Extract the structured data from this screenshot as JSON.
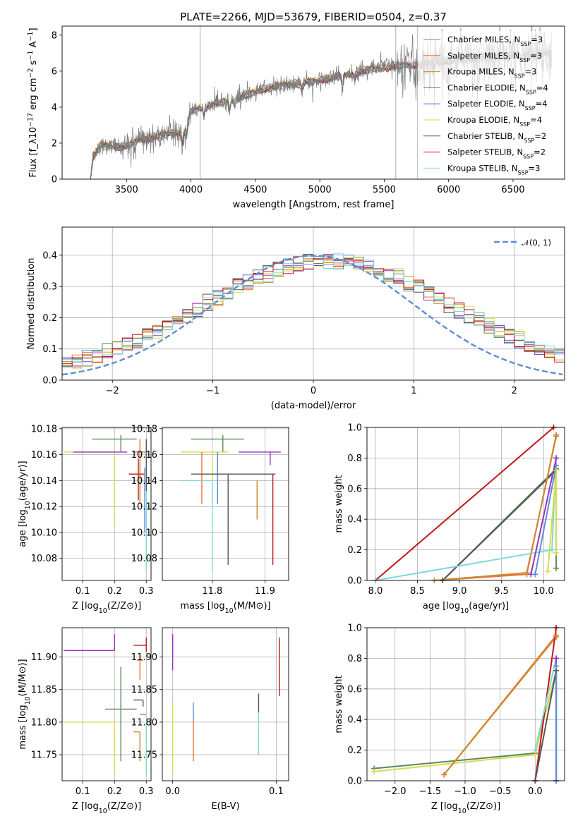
{
  "figure": {
    "title": "PLATE=2266, MJD=53679, FIBERID=0504, z=0.37"
  },
  "models": [
    {
      "name": "Chabrier MILES",
      "nssp": "3",
      "color": "#5b8dd9"
    },
    {
      "name": "Salpeter MILES",
      "nssp": "3",
      "color": "#e8743b"
    },
    {
      "name": "Kroupa MILES",
      "nssp": "3",
      "color": "#c98a2e"
    },
    {
      "name": "Chabrier ELODIE",
      "nssp": "4",
      "color": "#5a8a5a"
    },
    {
      "name": "Salpeter ELODIE",
      "nssp": "4",
      "color": "#9b30c0"
    },
    {
      "name": "Kroupa ELODIE",
      "nssp": "4",
      "color": "#d9dc4a"
    },
    {
      "name": "Chabrier STELIB",
      "nssp": "2",
      "color": "#555555"
    },
    {
      "name": "Salpeter STELIB",
      "nssp": "2",
      "color": "#c01818"
    },
    {
      "name": "Kroupa STELIB",
      "nssp": "3",
      "color": "#7fd8d8"
    }
  ],
  "chart_data": [
    {
      "id": "spectrum",
      "type": "line",
      "xlabel": "wavelength [Angstrom, rest frame]",
      "ylabel": "Flux [f_λ10^-17 erg cm^-2 s^-1 A^-1]",
      "xlim": [
        3000,
        6900
      ],
      "ylim": [
        0,
        8.5
      ],
      "xticks": [
        3500,
        4000,
        4500,
        5000,
        5500,
        6000,
        6500
      ],
      "yticks": [
        0,
        2,
        4,
        6,
        8
      ],
      "grid": false,
      "legend": "right",
      "continuum_anchors": [
        [
          3220,
          0
        ],
        [
          3240,
          1.2
        ],
        [
          3300,
          1.9
        ],
        [
          3500,
          1.8
        ],
        [
          3600,
          2.2
        ],
        [
          3700,
          2.3
        ],
        [
          3850,
          2.6
        ],
        [
          3950,
          2.6
        ],
        [
          4000,
          3.8
        ],
        [
          4200,
          4.2
        ],
        [
          4400,
          4.6
        ],
        [
          4600,
          5.1
        ],
        [
          4800,
          5.3
        ],
        [
          5000,
          5.5
        ],
        [
          5200,
          5.8
        ],
        [
          5400,
          6.1
        ],
        [
          5600,
          6.3
        ],
        [
          5800,
          6.4
        ],
        [
          6000,
          6.6
        ],
        [
          6300,
          6.8
        ],
        [
          6600,
          6.9
        ],
        [
          6800,
          7.0
        ]
      ],
      "notes": "Observed spectrum (gray) and nine model fits overlaid"
    },
    {
      "id": "residuals",
      "type": "line",
      "xlabel": "(data-model)/error",
      "ylabel": "Normed distribution",
      "xlim": [
        -2.5,
        2.5
      ],
      "ylim": [
        0,
        0.49
      ],
      "xticks": [
        -2,
        -1,
        0,
        1,
        2
      ],
      "yticks": [
        0.0,
        0.1,
        0.2,
        0.3,
        0.4
      ],
      "grid": true,
      "legend": "top-right",
      "legend_label": "𝒩(0, 1)",
      "gaussian": {
        "mean": 0,
        "sigma": 1,
        "color": "#5b8dd9"
      },
      "hist_bin_width": 0.1
    },
    {
      "id": "age-vs-Z",
      "type": "scatter",
      "xlabel": "Z [log10(Z/Z⊙)]",
      "ylabel": "age [log10(age/yr)]",
      "xlim": [
        0.035,
        0.315
      ],
      "ylim": [
        10.063,
        10.181
      ],
      "xticks": [
        0.1,
        0.2,
        0.3
      ],
      "yticks": [
        10.08,
        10.1,
        10.12,
        10.14,
        10.16,
        10.18
      ],
      "grid": true,
      "points": [
        {
          "model": 3,
          "x": 0.22,
          "y": 10.172,
          "xerr": [
            0.09,
            0.05
          ],
          "yerr": [
            0.01,
            0.003
          ]
        },
        {
          "model": 5,
          "x": 0.2,
          "y": 10.162,
          "xerr": [
            0.16,
            0.0
          ],
          "yerr": [
            0.057,
            0.0
          ]
        },
        {
          "model": 4,
          "x": 0.24,
          "y": 10.162,
          "xerr": [
            0.17,
            0.0
          ],
          "yerr": [
            0.0,
            0.0
          ]
        },
        {
          "model": 1,
          "x": 0.28,
          "y": 10.162,
          "xerr": [
            0.02,
            0.02
          ],
          "yerr": [
            0.04,
            0.01
          ]
        },
        {
          "model": 7,
          "x": 0.275,
          "y": 10.145,
          "xerr": [
            0.03,
            0.02
          ],
          "yerr": [
            0.02,
            0.012
          ]
        },
        {
          "model": 8,
          "x": 0.3,
          "y": 10.14,
          "xerr": [
            0.03,
            0.0
          ],
          "yerr": [
            0.07,
            0.0
          ]
        },
        {
          "model": 6,
          "x": 0.3,
          "y": 10.172,
          "xerr": [
            0.0,
            0.0
          ],
          "yerr": [
            0.04,
            0.0
          ]
        },
        {
          "model": 0,
          "x": 0.295,
          "y": 10.15,
          "xerr": [
            0.0,
            0.0
          ],
          "yerr": [
            0.05,
            0.0
          ]
        }
      ]
    },
    {
      "id": "age-vs-mass",
      "type": "scatter",
      "xlabel": "mass [log10(M/M⊙)]",
      "ylabel": "",
      "xlim": [
        11.705,
        11.945
      ],
      "ylim": [
        10.063,
        10.181
      ],
      "xticks": [
        11.8,
        11.9
      ],
      "yticks": [
        10.08,
        10.1,
        10.12,
        10.14,
        10.16,
        10.18
      ],
      "grid": true,
      "points": [
        {
          "model": 3,
          "x": 11.82,
          "y": 10.172,
          "xerr": [
            0.06,
            0.04
          ],
          "yerr": [
            0.01,
            0.003
          ]
        },
        {
          "model": 5,
          "x": 11.8,
          "y": 10.162,
          "xerr": [
            0.06,
            0.03
          ],
          "yerr": [
            0.04,
            0.0
          ]
        },
        {
          "model": 4,
          "x": 11.91,
          "y": 10.162,
          "xerr": [
            0.06,
            0.02
          ],
          "yerr": [
            0.01,
            0.0
          ]
        },
        {
          "model": 1,
          "x": 11.78,
          "y": 10.162,
          "xerr": [
            0.0,
            0.0
          ],
          "yerr": [
            0.04,
            0.0
          ]
        },
        {
          "model": 0,
          "x": 11.81,
          "y": 10.162,
          "xerr": [
            0.0,
            0.0
          ],
          "yerr": [
            0.04,
            0.0
          ]
        },
        {
          "model": 6,
          "x": 11.83,
          "y": 10.145,
          "xerr": [
            0.07,
            0.09
          ],
          "yerr": [
            0.07,
            0.0
          ]
        },
        {
          "model": 8,
          "x": 11.8,
          "y": 10.14,
          "xerr": [
            0.06,
            0.0
          ],
          "yerr": [
            0.07,
            0.0
          ]
        },
        {
          "model": 2,
          "x": 11.885,
          "y": 10.14,
          "xerr": [
            0.0,
            0.0
          ],
          "yerr": [
            0.03,
            0.0
          ]
        },
        {
          "model": 7,
          "x": 11.915,
          "y": 10.145,
          "xerr": [
            0.0,
            0.0
          ],
          "yerr": [
            0.07,
            0.0
          ]
        }
      ]
    },
    {
      "id": "weight-vs-age",
      "type": "line",
      "xlabel": "age [log10(age/yr)]",
      "ylabel": "mass weight",
      "xlim": [
        7.9,
        10.25
      ],
      "ylim": [
        0,
        1
      ],
      "xticks": [
        8.0,
        8.5,
        9.0,
        9.5,
        10.0
      ],
      "yticks": [
        0.0,
        0.2,
        0.4,
        0.6,
        0.8,
        1.0
      ],
      "grid": true,
      "series": [
        {
          "model": 7,
          "x": [
            8.0,
            10.12
          ],
          "y": [
            0.0,
            1.0
          ]
        },
        {
          "model": 3,
          "x": [
            8.8,
            10.15,
            10.15
          ],
          "y": [
            0.0,
            0.73,
            0.08
          ]
        },
        {
          "model": 6,
          "x": [
            8.8,
            10.15
          ],
          "y": [
            0.0,
            0.72
          ]
        },
        {
          "model": 1,
          "x": [
            8.7,
            9.8,
            10.15
          ],
          "y": [
            0.0,
            0.04,
            0.95
          ]
        },
        {
          "model": 2,
          "x": [
            8.7,
            9.8,
            10.15
          ],
          "y": [
            0.0,
            0.05,
            0.94
          ]
        },
        {
          "model": 8,
          "x": [
            8.0,
            10.1,
            10.15
          ],
          "y": [
            0.0,
            0.2,
            0.8
          ]
        },
        {
          "model": 4,
          "x": [
            9.85,
            10.15
          ],
          "y": [
            0.04,
            0.8
          ]
        },
        {
          "model": 0,
          "x": [
            9.9,
            10.15
          ],
          "y": [
            0.04,
            0.75
          ]
        },
        {
          "model": 5,
          "x": [
            10.05,
            10.15,
            10.15
          ],
          "y": [
            0.06,
            0.72,
            0.18
          ]
        }
      ]
    },
    {
      "id": "mass-vs-Z",
      "type": "scatter",
      "xlabel": "Z [log10(Z/Z⊙)]",
      "ylabel": "mass [log10(M/M⊙)]",
      "xlim": [
        0.035,
        0.315
      ],
      "ylim": [
        11.71,
        11.945
      ],
      "xticks": [
        0.1,
        0.2,
        0.3
      ],
      "yticks": [
        11.75,
        11.8,
        11.85,
        11.9
      ],
      "grid": true,
      "points": [
        {
          "model": 4,
          "x": 0.2,
          "y": 11.91,
          "xerr": [
            0.16,
            0.0
          ],
          "yerr": [
            0.0,
            0.025
          ]
        },
        {
          "model": 7,
          "x": 0.3,
          "y": 11.918,
          "xerr": [
            0.04,
            0.0
          ],
          "yerr": [
            0.01,
            0.012
          ]
        },
        {
          "model": 1,
          "x": 0.28,
          "y": 11.895,
          "xerr": [
            0.01,
            0.01
          ],
          "yerr": [
            0.03,
            0.01
          ]
        },
        {
          "model": 3,
          "x": 0.22,
          "y": 11.82,
          "xerr": [
            0.05,
            0.05
          ],
          "yerr": [
            0.08,
            0.065
          ]
        },
        {
          "model": 6,
          "x": 0.29,
          "y": 11.834,
          "xerr": [
            0.03,
            0.0
          ],
          "yerr": [
            0.01,
            0.0
          ]
        },
        {
          "model": 0,
          "x": 0.28,
          "y": 11.812,
          "xerr": [
            0.0,
            0.02
          ],
          "yerr": [
            0.0,
            0.0
          ]
        },
        {
          "model": 5,
          "x": 0.2,
          "y": 11.8,
          "xerr": [
            0.16,
            0.0
          ],
          "yerr": [
            0.08,
            0.0
          ]
        },
        {
          "model": 2,
          "x": 0.28,
          "y": 11.785,
          "xerr": [
            0.02,
            0.0
          ],
          "yerr": [
            0.045,
            0.0
          ]
        },
        {
          "model": 8,
          "x": 0.3,
          "y": 11.8,
          "xerr": [
            0.0,
            0.0
          ],
          "yerr": [
            0.08,
            0.0
          ]
        }
      ]
    },
    {
      "id": "mass-vs-EBV",
      "type": "scatter",
      "xlabel": "E(B-V)",
      "ylabel": "",
      "xlim": [
        -0.01,
        0.112
      ],
      "ylim": [
        11.71,
        11.945
      ],
      "xticks": [
        0.0,
        0.1
      ],
      "yticks": [
        11.75,
        11.8,
        11.85,
        11.9
      ],
      "grid": true,
      "points": [
        {
          "model": 4,
          "x": 0.0,
          "y": 11.91,
          "xerr": [
            0,
            0
          ],
          "yerr": [
            0.03,
            0.025
          ]
        },
        {
          "model": 5,
          "x": 0.0,
          "y": 11.8,
          "xerr": [
            0,
            0
          ],
          "yerr": [
            0.08,
            0.03
          ]
        },
        {
          "model": 0,
          "x": 0.02,
          "y": 11.81,
          "xerr": [
            0,
            0
          ],
          "yerr": [
            0.01,
            0.02
          ]
        },
        {
          "model": 1,
          "x": 0.02,
          "y": 11.77,
          "xerr": [
            0,
            0
          ],
          "yerr": [
            0.03,
            0.035
          ]
        },
        {
          "model": 6,
          "x": 0.083,
          "y": 11.834,
          "xerr": [
            0,
            0
          ],
          "yerr": [
            0.02,
            0.01
          ]
        },
        {
          "model": 8,
          "x": 0.083,
          "y": 11.78,
          "xerr": [
            0,
            0
          ],
          "yerr": [
            0.03,
            0.035
          ]
        },
        {
          "model": 7,
          "x": 0.103,
          "y": 11.885,
          "xerr": [
            0,
            0
          ],
          "yerr": [
            0.045,
            0.045
          ]
        }
      ]
    },
    {
      "id": "weight-vs-Z",
      "type": "line",
      "xlabel": "Z [log10(Z/Z⊙)]",
      "ylabel": "mass weight",
      "xlim": [
        -2.4,
        0.42
      ],
      "ylim": [
        0,
        1
      ],
      "xticks": [
        -2.0,
        -1.5,
        -1.0,
        -0.5,
        0.0
      ],
      "yticks": [
        0.0,
        0.2,
        0.4,
        0.6,
        0.8,
        1.0
      ],
      "grid": true,
      "series": [
        {
          "model": 3,
          "x": [
            -2.3,
            0.0,
            0.3,
            0.3
          ],
          "y": [
            0.08,
            0.18,
            0.72,
            0.0
          ]
        },
        {
          "model": 5,
          "x": [
            -2.3,
            0.0,
            0.3
          ],
          "y": [
            0.06,
            0.17,
            0.72
          ]
        },
        {
          "model": 1,
          "x": [
            -1.3,
            0.3
          ],
          "y": [
            0.04,
            0.95
          ]
        },
        {
          "model": 2,
          "x": [
            -1.3,
            0.3
          ],
          "y": [
            0.04,
            0.94
          ]
        },
        {
          "model": 7,
          "x": [
            0.0,
            0.3
          ],
          "y": [
            0.0,
            1.0
          ]
        },
        {
          "model": 6,
          "x": [
            0.0,
            0.3
          ],
          "y": [
            0.0,
            0.72
          ]
        },
        {
          "model": 8,
          "x": [
            0.0,
            0.3,
            0.3
          ],
          "y": [
            0.2,
            0.8,
            0.0
          ]
        },
        {
          "model": 4,
          "x": [
            0.3,
            0.3
          ],
          "y": [
            0.0,
            0.8
          ]
        },
        {
          "model": 0,
          "x": [
            0.3,
            0.3
          ],
          "y": [
            0.0,
            0.75
          ]
        }
      ]
    }
  ]
}
